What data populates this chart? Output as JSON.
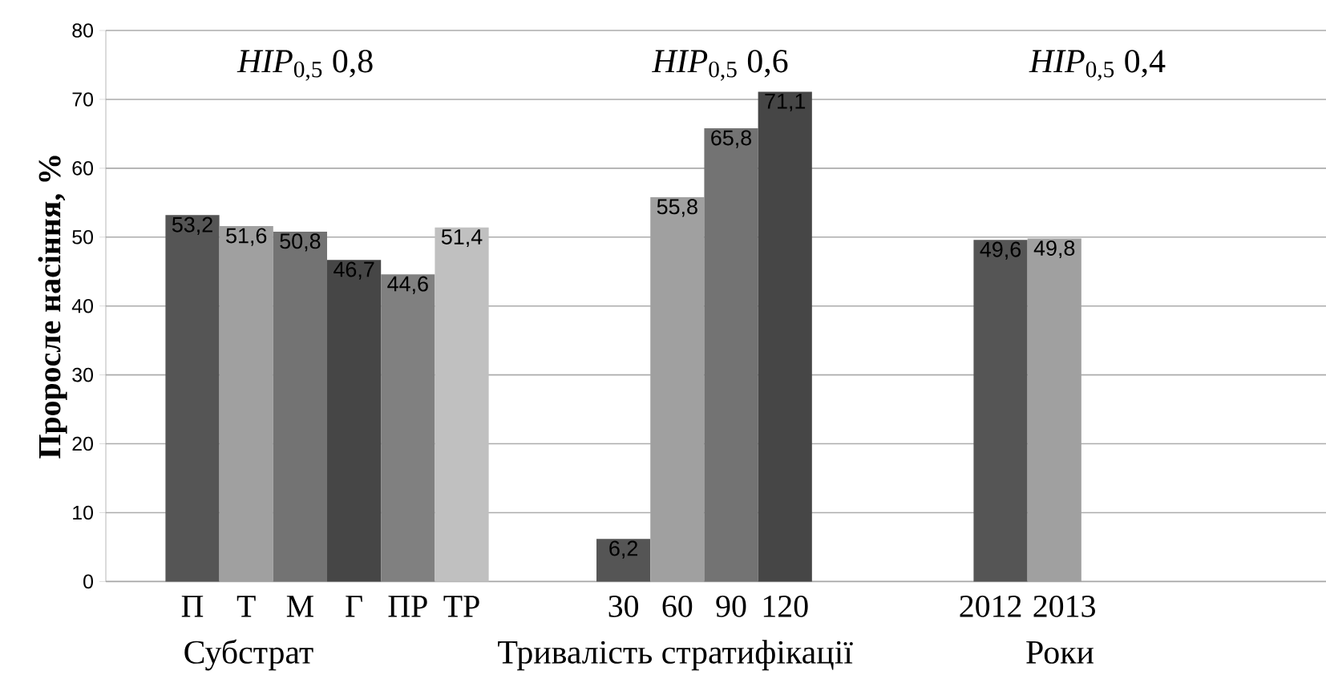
{
  "chart_data": {
    "type": "bar",
    "ylabel": "Проросле насіння, %",
    "categories": [
      "П",
      "Т",
      "М",
      "Г",
      "ПР",
      "ТР",
      null,
      null,
      "30",
      "60",
      "90",
      "120",
      null,
      null,
      null,
      "2012",
      "2013",
      null,
      null,
      null,
      null,
      null
    ],
    "values": [
      53.2,
      51.6,
      50.8,
      46.7,
      44.6,
      51.4,
      null,
      null,
      6.2,
      55.8,
      65.8,
      71.1,
      null,
      null,
      null,
      49.6,
      49.8,
      null,
      null,
      null,
      null,
      null
    ],
    "value_labels": [
      "53,2",
      "51,6",
      "50,8",
      "46,7",
      "44,6",
      "51,4",
      null,
      null,
      "6,2",
      "55,8",
      "65,8",
      "71,1",
      null,
      null,
      null,
      "49,6",
      "49,8",
      null,
      null,
      null,
      null,
      null
    ],
    "colors": [
      "#555555",
      "#a0a0a0",
      "#737373",
      "#464646",
      "#808080",
      "#c0c0c0",
      null,
      null,
      "#555555",
      "#a0a0a0",
      "#737373",
      "#464646",
      null,
      null,
      null,
      "#555555",
      "#a0a0a0",
      null,
      null,
      null,
      null,
      null
    ],
    "ylim": [
      0,
      80
    ],
    "yticks": [
      0,
      10,
      20,
      30,
      40,
      50,
      60,
      70,
      80
    ],
    "grid": "y",
    "annotations": [
      "*HIP*$_{0,5}$ 0,8",
      "*HIP*$_{0,5}$ 0,6",
      "*HIP*$_{0,5}$ 0,4",
      "Субстрат",
      "Тривалість стратифікації",
      "Роки"
    ]
  }
}
